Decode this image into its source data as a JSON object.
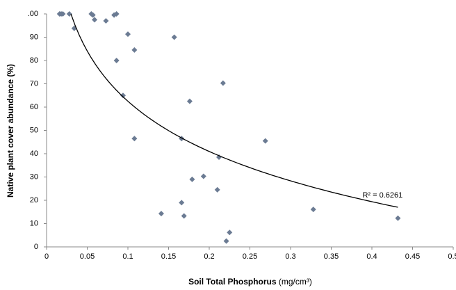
{
  "chart_data": {
    "type": "scatter",
    "x_label": "Soil Total Phosphorus",
    "x_label_unit": "(mg/cm³)",
    "y_label": "Native plant cover abundance (%)",
    "xlim": [
      0,
      0.5
    ],
    "xticks": [
      0,
      0.05,
      0.1,
      0.15,
      0.2,
      0.25,
      0.3,
      0.35,
      0.4,
      0.45,
      0.5
    ],
    "ylim": [
      0,
      100
    ],
    "yticks": [
      0,
      10,
      20,
      30,
      40,
      50,
      60,
      70,
      80,
      90,
      {
        "value": 100,
        "label": ".00"
      }
    ],
    "series": [
      {
        "color": "#6b7b93",
        "x": [
          0.016,
          0.018,
          0.02,
          0.028,
          0.034,
          0.055,
          0.057,
          0.059,
          0.073,
          0.083,
          0.086,
          0.1,
          0.108,
          0.086,
          0.094,
          0.108,
          0.157,
          0.176,
          0.166,
          0.217,
          0.212,
          0.269,
          0.193,
          0.179,
          0.21,
          0.166,
          0.141,
          0.169,
          0.225,
          0.221,
          0.328,
          0.432
        ],
        "values": [
          100,
          100,
          100,
          100,
          93.8,
          100,
          99.5,
          97.5,
          97,
          99.5,
          100,
          91.3,
          84.5,
          80,
          65,
          46.5,
          90,
          62.5,
          46.5,
          70.3,
          38.5,
          45.5,
          30.3,
          29,
          24.5,
          19,
          14.3,
          13.3,
          6.2,
          2.5,
          16.1,
          12.3
        ]
      }
    ],
    "trendline": {
      "type": "logarithmic",
      "label": "R² = 0.6261",
      "a": -9.1,
      "b": -31.1,
      "x": [
        0.03,
        0.432
      ]
    }
  }
}
